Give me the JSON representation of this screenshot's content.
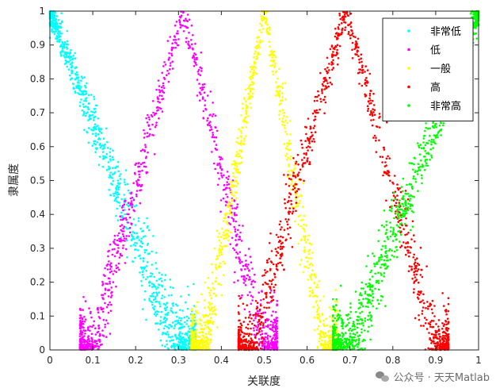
{
  "chart_data": {
    "type": "scatter",
    "title": "",
    "xlabel": "关联度",
    "ylabel": "隶属度",
    "xlim": [
      0,
      1
    ],
    "ylim": [
      0,
      1
    ],
    "xticks": [
      "0",
      "0.1",
      "0.2",
      "0.3",
      "0.4",
      "0.5",
      "0.6",
      "0.7",
      "0.8",
      "0.9",
      "1"
    ],
    "yticks": [
      "0",
      "0.1",
      "0.2",
      "0.3",
      "0.4",
      "0.5",
      "0.6",
      "0.7",
      "0.8",
      "0.9",
      "1"
    ],
    "grid": false,
    "legend_position": "top-right",
    "series": [
      {
        "name": "非常低",
        "color": "#00FFFF",
        "shape": "decreasing-from-0",
        "peak_x": 0.0,
        "zero_x_right": 0.3
      },
      {
        "name": "低",
        "color": "#FF00FF",
        "shape": "triangle",
        "peak_x": 0.31,
        "zero_x_left": 0.1,
        "zero_x_right": 0.5
      },
      {
        "name": "一般",
        "color": "#FFFF00",
        "shape": "triangle",
        "peak_x": 0.5,
        "zero_x_left": 0.36,
        "zero_x_right": 0.64
      },
      {
        "name": "高",
        "color": "#FF0000",
        "shape": "triangle",
        "peak_x": 0.69,
        "zero_x_left": 0.47,
        "zero_x_right": 0.9
      },
      {
        "name": "非常高",
        "color": "#00FF00",
        "shape": "increasing-to-1",
        "peak_x": 1.0,
        "zero_x_left": 0.7
      }
    ]
  },
  "watermark": {
    "text": "公众号 · 天天Matlab"
  }
}
